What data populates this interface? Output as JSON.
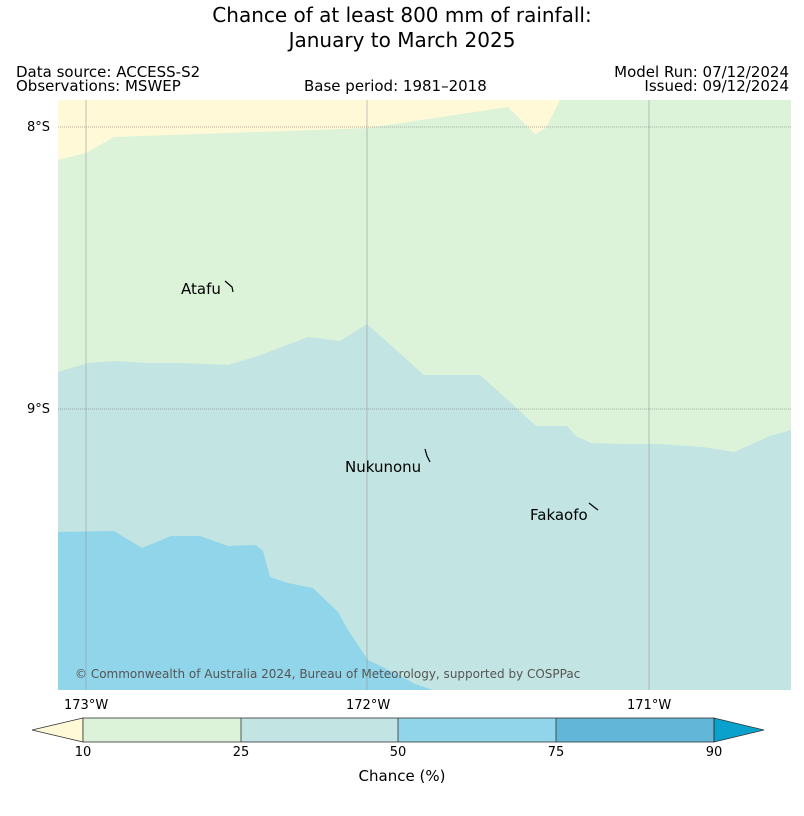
{
  "title": {
    "line1": "Chance of at least 800 mm of rainfall:",
    "line2": "January to March 2025"
  },
  "meta": {
    "data_source": "Data source: ACCESS-S2",
    "observations": "Observations: MSWEP",
    "base_period": "Base period: 1981–2018",
    "model_run": "Model Run: 07/12/2024",
    "issued": "Issued: 09/12/2024"
  },
  "map": {
    "lat_labels": [
      "8°S",
      "9°S"
    ],
    "lon_labels": [
      "173°W",
      "172°W",
      "171°W"
    ],
    "places": [
      "Atafu",
      "Nukunonu",
      "Fakaofo"
    ],
    "copyright": "© Commonwealth of Australia 2024, Bureau of Meteorology, supported by COSPPac",
    "colors": {
      "below_10": "#fff9d8",
      "10_25": "#ddf3d9",
      "25_50": "#c2e4e2",
      "50_75": "#90d5ea",
      "75_90": "#62b6d8",
      "above_90": "#0aa2cc"
    }
  },
  "colorbar": {
    "ticks": [
      "10",
      "25",
      "50",
      "75",
      "90"
    ],
    "label": "Chance (%)"
  }
}
